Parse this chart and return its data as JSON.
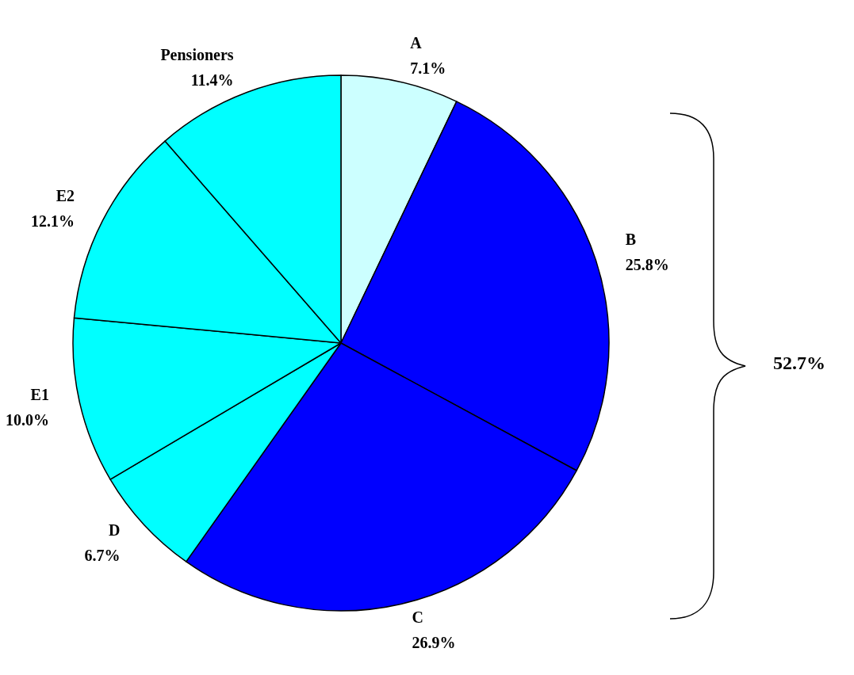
{
  "chart_data": {
    "type": "pie",
    "categories": [
      "A",
      "B",
      "C",
      "D",
      "E1",
      "E2",
      "Pensioners"
    ],
    "values": [
      7.1,
      25.8,
      26.9,
      6.7,
      10.0,
      12.1,
      11.4
    ],
    "value_labels": [
      "7.1%",
      "25.8%",
      "26.9%",
      "6.7%",
      "10.0%",
      "12.1%",
      "11.4%"
    ],
    "colors": [
      "#ccffff",
      "#0000ff",
      "#0000ff",
      "#00ffff",
      "#00ffff",
      "#00ffff",
      "#00ffff"
    ],
    "annotations": [
      "52.7%"
    ],
    "legend": false
  }
}
